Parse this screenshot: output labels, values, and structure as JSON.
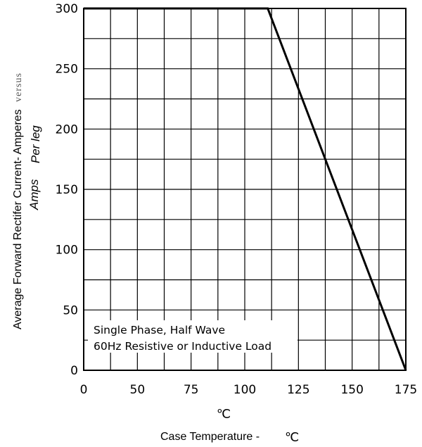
{
  "chart_data": {
    "type": "line",
    "series": [
      {
        "x": [
          0,
          100,
          175
        ],
        "y": [
          300,
          300,
          0
        ]
      }
    ],
    "xlim": [
      0,
      175
    ],
    "ylim": [
      0,
      300
    ],
    "x_ticks": [
      "0",
      "50",
      "75",
      "100",
      "125",
      "150",
      "175"
    ],
    "y_ticks": [
      "0",
      "50",
      "100",
      "150",
      "200",
      "250",
      "300"
    ],
    "ylabel": {
      "line1": "Average Forward Rectifer Current- Amperes",
      "line1_suffix": "versus",
      "line2": "Amps",
      "line2_suffix": "Per leg"
    },
    "xlabel": {
      "unit": "℃",
      "text": "Case Temperature -",
      "text_unit": "℃"
    },
    "annotation": {
      "line1": "Single Phase, Half Wave",
      "line2": "60Hz Resistive or Inductive Load"
    },
    "grid": true
  }
}
